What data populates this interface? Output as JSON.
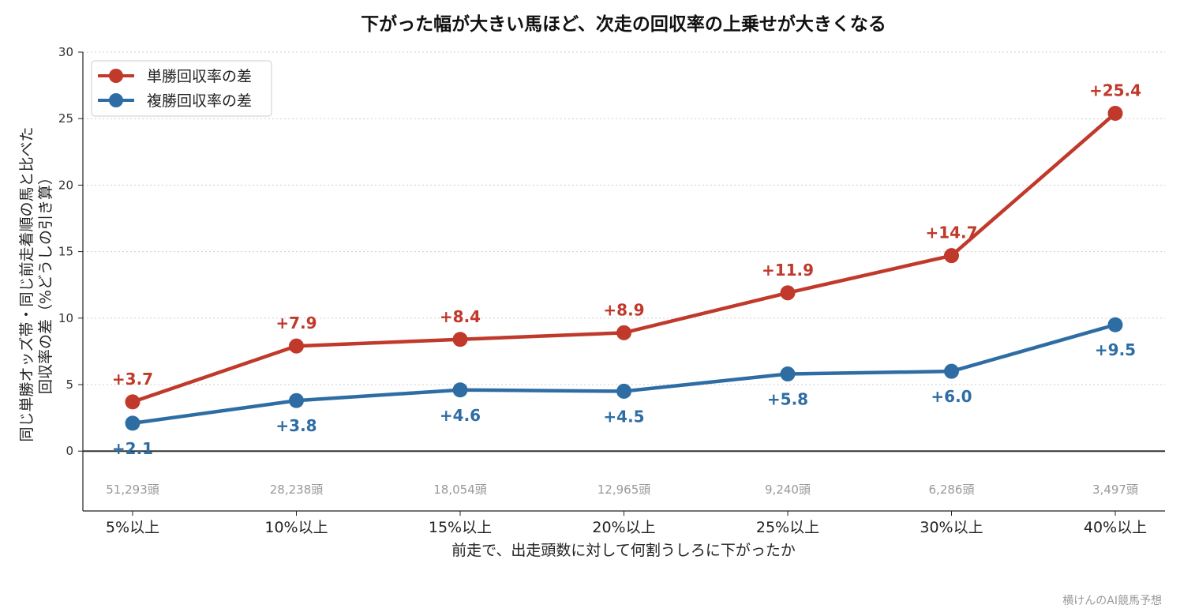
{
  "chart_data": {
    "type": "line",
    "title": "下がった幅が大きい馬ほど、次走の回収率の上乗せが大きくなる",
    "xlabel": "前走で、出走頭数に対して何割うしろに下がったか",
    "ylabel_lines": [
      "同じ単勝オッズ帯・同じ前走着順の馬と比べた",
      "回収率の差（%どうしの引き算）"
    ],
    "categories": [
      "5%以上",
      "10%以上",
      "15%以上",
      "20%以上",
      "25%以上",
      "30%以上",
      "40%以上"
    ],
    "counts": [
      "51,293頭",
      "28,238頭",
      "18,054頭",
      "12,965頭",
      "9,240頭",
      "6,286頭",
      "3,497頭"
    ],
    "ylim": [
      -4.5,
      30
    ],
    "yticks": [
      "0",
      "5",
      "10",
      "15",
      "20",
      "25",
      "30"
    ],
    "grid": true,
    "legend_position": "top-left",
    "series": [
      {
        "name": "単勝回収率の差",
        "color": "#c0392b",
        "values": [
          3.7,
          7.9,
          8.4,
          8.9,
          11.9,
          14.7,
          25.4
        ],
        "labels": [
          "+3.7",
          "+7.9",
          "+8.4",
          "+8.9",
          "+11.9",
          "+14.7",
          "+25.4"
        ],
        "label_side": "above"
      },
      {
        "name": "複勝回収率の差",
        "color": "#2e6da4",
        "values": [
          2.1,
          3.8,
          4.6,
          4.5,
          5.8,
          6.0,
          9.5
        ],
        "labels": [
          "+2.1",
          "+3.8",
          "+4.6",
          "+4.5",
          "+5.8",
          "+6.0",
          "+9.5"
        ],
        "label_side": "below"
      }
    ]
  },
  "footer": {
    "watermark": "横けんのAI競馬予想"
  }
}
